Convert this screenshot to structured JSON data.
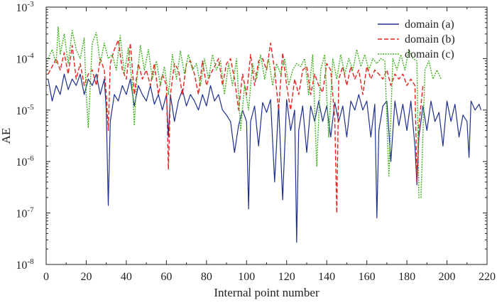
{
  "chart_data": {
    "type": "line",
    "title": "",
    "xlabel": "Internal point number",
    "ylabel": "AE",
    "xlim": [
      0,
      220
    ],
    "ylim": [
      1e-08,
      0.001
    ],
    "yscale": "log",
    "grid": false,
    "legend_position": "top-right",
    "x_ticks": [
      0,
      20,
      40,
      60,
      80,
      100,
      120,
      140,
      160,
      180,
      200,
      220
    ],
    "y_ticks": [
      {
        "value": 1e-08,
        "base": "10",
        "exp": "-8"
      },
      {
        "value": 1e-07,
        "base": "10",
        "exp": "-7"
      },
      {
        "value": 1e-06,
        "base": "10",
        "exp": "-6"
      },
      {
        "value": 1e-05,
        "base": "10",
        "exp": "-5"
      },
      {
        "value": 0.0001,
        "base": "10",
        "exp": "-4"
      },
      {
        "value": 0.001,
        "base": "10",
        "exp": "-3"
      }
    ],
    "series": [
      {
        "name": "domain (a)",
        "color": "#1f2f8f",
        "dash": "",
        "x": [
          1,
          3,
          5,
          7,
          9,
          11,
          13,
          15,
          17,
          19,
          21,
          23,
          25,
          27,
          29,
          30,
          31,
          32,
          34,
          36,
          38,
          40,
          42,
          44,
          46,
          48,
          50,
          52,
          54,
          56,
          58,
          60,
          61,
          62,
          64,
          66,
          68,
          70,
          72,
          74,
          76,
          78,
          80,
          82,
          84,
          86,
          88,
          90,
          92,
          94,
          96,
          98,
          100,
          101,
          102,
          104,
          106,
          108,
          110,
          112,
          114,
          116,
          118,
          120,
          122,
          124,
          125,
          126,
          128,
          130,
          132,
          134,
          136,
          138,
          140,
          142,
          144,
          146,
          148,
          150,
          152,
          154,
          156,
          158,
          160,
          162,
          164,
          165,
          166,
          168,
          170,
          172,
          174,
          176,
          178,
          180,
          182,
          184,
          185,
          186,
          188,
          190,
          192,
          194,
          196,
          198,
          200,
          202,
          204,
          206,
          208,
          210,
          211,
          212,
          214,
          216,
          217
        ],
        "y": [
          4e-05,
          1.5e-05,
          3e-05,
          2e-05,
          5e-05,
          2.5e-05,
          4e-05,
          3e-05,
          5e-05,
          2e-05,
          4e-05,
          3e-05,
          5e-05,
          2e-05,
          4e-05,
          1e-05,
          1.4e-07,
          6e-06,
          2e-05,
          1.5e-05,
          3e-05,
          2e-05,
          4e-05,
          1.2e-05,
          3e-05,
          2e-05,
          1.5e-05,
          3e-05,
          1.3e-05,
          2e-05,
          1e-05,
          2e-05,
          3e-06,
          2e-05,
          6e-06,
          1.5e-05,
          2.5e-05,
          1.2e-05,
          2e-05,
          1.5e-05,
          1e-05,
          2e-05,
          1.2e-05,
          3e-05,
          1.5e-05,
          2e-05,
          1e-05,
          8e-06,
          6e-06,
          1.5e-06,
          5e-06,
          1e-05,
          6e-06,
          1.2e-07,
          6e-06,
          1.2e-05,
          2e-06,
          1.4e-05,
          9e-06,
          1.6e-05,
          4e-07,
          1.3e-05,
          1.8e-07,
          1.6e-05,
          4e-06,
          1e-05,
          2.7e-08,
          4e-06,
          1.2e-05,
          1.5e-06,
          1.2e-05,
          6e-06,
          1.5e-05,
          6e-06,
          1.2e-05,
          3e-06,
          1.4e-05,
          6e-06,
          1.2e-05,
          3e-06,
          1.5e-05,
          1e-05,
          2e-05,
          1e-05,
          1.5e-05,
          3e-06,
          1.3e-05,
          8e-08,
          4e-06,
          1.2e-05,
          1.5e-05,
          1e-06,
          1.5e-05,
          5e-06,
          1.3e-05,
          4e-06,
          1.5e-05,
          2e-06,
          3.5e-07,
          3e-06,
          1.2e-05,
          4e-06,
          1.5e-05,
          6e-06,
          9e-06,
          2e-06,
          1.5e-05,
          6e-06,
          1.3e-05,
          3e-06,
          8e-06,
          6e-06,
          1.2e-06,
          1.5e-05,
          1e-05,
          1.3e-05,
          1e-05
        ]
      },
      {
        "name": "domain (b)",
        "color": "#e8231f",
        "dash": "6,3",
        "x": [
          1,
          3,
          5,
          7,
          9,
          11,
          13,
          15,
          17,
          19,
          21,
          23,
          25,
          27,
          29,
          30,
          31,
          32,
          34,
          36,
          38,
          40,
          42,
          44,
          46,
          48,
          50,
          52,
          54,
          56,
          58,
          60,
          61,
          62,
          64,
          66,
          68,
          70,
          72,
          74,
          76,
          78,
          80,
          82,
          84,
          86,
          88,
          90,
          92,
          94,
          96,
          98,
          100,
          102,
          104,
          106,
          108,
          110,
          112,
          114,
          116,
          118,
          120,
          122,
          124,
          126,
          128,
          130,
          132,
          134,
          136,
          138,
          140,
          142,
          144,
          145,
          146,
          148,
          150,
          152,
          154,
          156,
          158,
          160,
          162,
          164,
          166,
          168,
          170,
          172,
          174,
          176,
          178,
          180,
          182,
          184,
          185,
          186,
          188
        ],
        "y": [
          5e-05,
          7e-05,
          0.0001,
          6e-05,
          0.00013,
          5e-05,
          0.00018,
          4e-05,
          8e-05,
          3e-05,
          5e-05,
          6e-05,
          3e-05,
          0.0001,
          6e-05,
          2e-05,
          4e-06,
          8e-05,
          0.00015,
          0.00023,
          6e-05,
          4e-05,
          0.0002,
          2e-05,
          8e-05,
          4e-05,
          6e-05,
          3e-05,
          8e-05,
          2e-05,
          5e-05,
          3e-05,
          7e-07,
          2e-05,
          8e-05,
          6e-05,
          2e-05,
          8e-05,
          9e-05,
          5e-05,
          2e-05,
          9e-05,
          3e-05,
          5e-05,
          7e-05,
          0.0001,
          3e-05,
          8e-05,
          0.0001,
          4e-05,
          1e-05,
          5e-05,
          2e-05,
          0.00012,
          3e-05,
          9e-05,
          0.0001,
          6e-05,
          0.0002,
          6e-05,
          1e-05,
          0.00013,
          3e-05,
          1e-05,
          4e-05,
          2e-05,
          6e-05,
          7e-05,
          2e-05,
          5e-05,
          3e-05,
          2.2e-05,
          8e-05,
          6e-05,
          7e-06,
          1e-07,
          4e-05,
          7e-05,
          3e-05,
          7e-05,
          4e-05,
          6e-05,
          2e-05,
          7e-05,
          4e-05,
          6e-05,
          5e-05,
          4e-05,
          6e-05,
          3e-05,
          5e-05,
          4e-05,
          5e-05,
          3e-05,
          4e-05,
          3e-05,
          4e-07,
          5e-06,
          3e-05
        ]
      },
      {
        "name": "domain (c)",
        "color": "#41b21f",
        "dash": "2,1.5",
        "x": [
          1,
          3,
          5,
          6,
          7,
          9,
          11,
          13,
          15,
          17,
          19,
          20,
          21,
          23,
          25,
          27,
          29,
          31,
          33,
          35,
          37,
          39,
          41,
          43,
          44,
          45,
          47,
          49,
          51,
          53,
          55,
          57,
          59,
          61,
          63,
          65,
          67,
          69,
          71,
          73,
          75,
          77,
          79,
          81,
          83,
          85,
          87,
          89,
          91,
          93,
          95,
          97,
          99,
          101,
          103,
          105,
          107,
          109,
          111,
          113,
          115,
          117,
          119,
          121,
          123,
          125,
          127,
          129,
          131,
          133,
          135,
          137,
          139,
          141,
          143,
          145,
          147,
          149,
          151,
          153,
          155,
          157,
          159,
          161,
          163,
          165,
          167,
          169,
          171,
          173,
          175,
          177,
          179,
          181,
          183,
          185,
          186,
          187,
          189,
          191,
          193,
          195,
          197
        ],
        "y": [
          0.0001,
          0.00015,
          8e-05,
          0.00041,
          0.00012,
          0.0003,
          8e-05,
          0.00035,
          0.00015,
          0.0001,
          0.00025,
          2e-05,
          4.5e-06,
          0.0002,
          0.00032,
          8e-05,
          0.0002,
          0.0001,
          0.00012,
          6e-05,
          0.00028,
          5e-05,
          0.00016,
          3e-05,
          5e-06,
          3e-05,
          0.00018,
          6e-05,
          0.00015,
          4e-05,
          9e-05,
          3e-05,
          7e-05,
          2e-05,
          0.00012,
          4e-05,
          0.00014,
          5e-05,
          0.00012,
          6e-05,
          8e-05,
          3e-05,
          0.0001,
          4e-05,
          0.00012,
          6e-05,
          9e-05,
          2e-05,
          8e-05,
          3e-05,
          0.0001,
          4e-06,
          3e-05,
          1e-05,
          8e-05,
          4e-05,
          0.00012,
          4e-05,
          0.0001,
          3e-05,
          8e-05,
          5e-05,
          0.0001,
          3e-05,
          6e-05,
          8e-05,
          7e-05,
          0.0001,
          2e-05,
          0.00012,
          8e-07,
          6e-05,
          0.00012,
          3e-06,
          0.0001,
          4e-05,
          0.00012,
          5e-05,
          0.0001,
          6e-05,
          0.00015,
          7e-05,
          0.00012,
          6e-05,
          0.0001,
          8e-05,
          0.0001,
          9e-05,
          5e-07,
          0.0001,
          6e-05,
          0.00012,
          6e-05,
          0.00015,
          0.0001,
          9e-05,
          2e-07,
          2e-07,
          6e-05,
          9e-05,
          4e-05,
          6e-05,
          4e-05
        ]
      }
    ]
  }
}
